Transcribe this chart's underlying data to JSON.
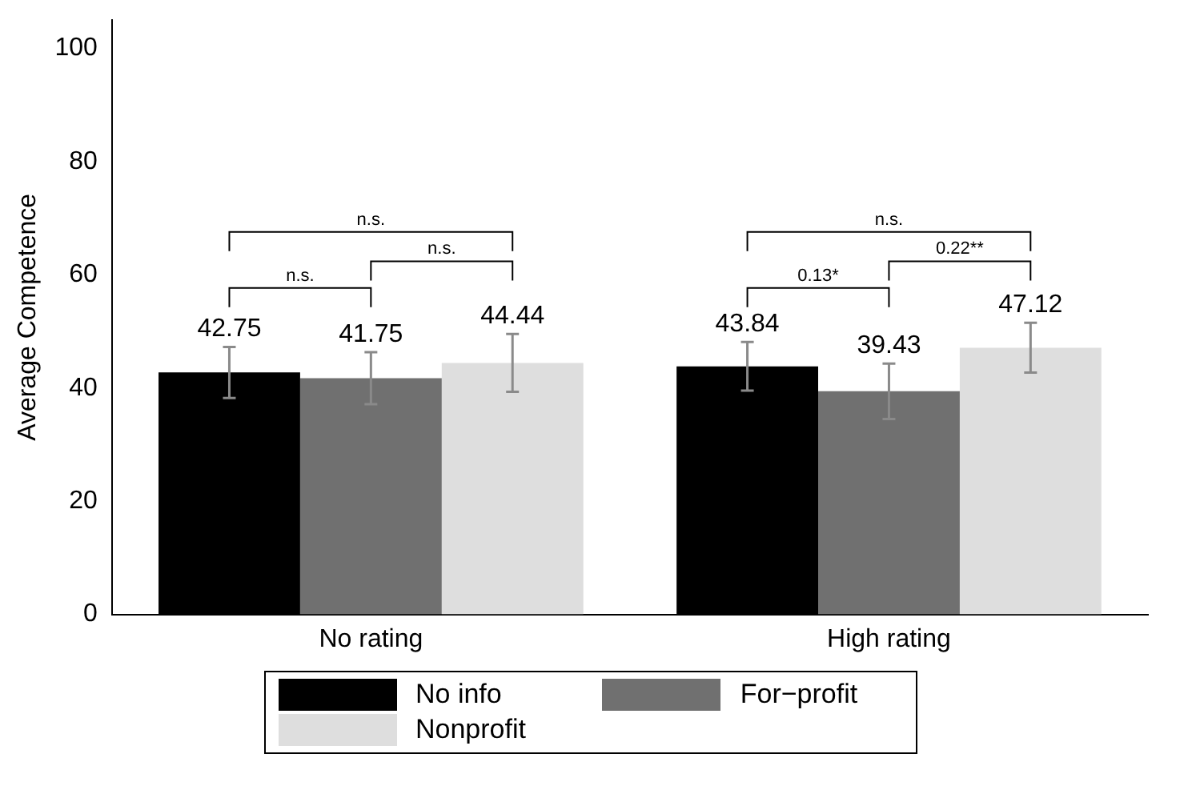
{
  "chart_data": {
    "type": "bar",
    "ylabel": "Average Competence",
    "categories": [
      "No rating",
      "High rating"
    ],
    "series": [
      {
        "name": "No info",
        "color": "#000000",
        "values": [
          42.75,
          43.84
        ],
        "errors": [
          4.5,
          4.3
        ]
      },
      {
        "name": "For−profit",
        "color": "#707070",
        "values": [
          41.75,
          39.43
        ],
        "errors": [
          4.6,
          4.9
        ]
      },
      {
        "name": "Nonprofit",
        "color": "#dedede",
        "values": [
          44.44,
          47.12
        ],
        "errors": [
          5.1,
          4.4
        ]
      }
    ],
    "ylim": [
      0,
      105
    ],
    "yticks": [
      0,
      20,
      40,
      60,
      80,
      100
    ],
    "grid": false,
    "legend": "bottom",
    "data_labels": true,
    "annotations": [
      "n.s.",
      "n.s.",
      "n.s.",
      "n.s.",
      "0.22**",
      "0.13*"
    ]
  }
}
